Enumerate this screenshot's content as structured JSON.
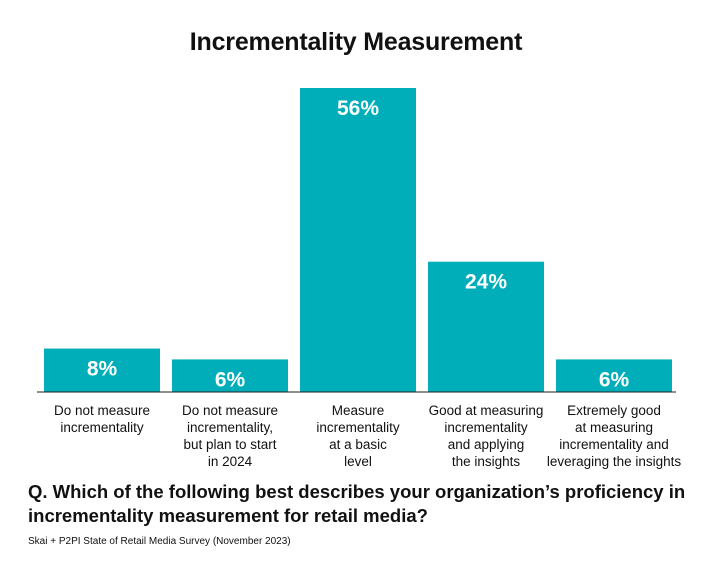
{
  "chart_data": {
    "type": "bar",
    "title": "Incrementality Measurement",
    "categories": [
      [
        "Do not measure",
        "incrementality"
      ],
      [
        "Do not measure",
        "incrementality,",
        "but plan to start",
        "in 2024"
      ],
      [
        "Measure",
        "incrementality",
        "at a basic",
        "level"
      ],
      [
        "Good at measuring",
        "incrementality",
        "and applying",
        "the insights"
      ],
      [
        "Extremely good",
        "at measuring",
        "incrementality and",
        "leveraging the insights"
      ]
    ],
    "values": [
      8,
      6,
      56,
      24,
      6
    ],
    "value_labels": [
      "8%",
      "6%",
      "56%",
      "24%",
      "6%"
    ],
    "unit": "%",
    "ylim": [
      0,
      56
    ],
    "grid": false,
    "legend": "none",
    "bar_color": "#00AEBA",
    "axis_color": "#222222"
  },
  "question": "Q. Which of the following best describes your organization’s proficiency in incrementality measurement for retail media?",
  "source": "Skai + P2PI State of Retail Media Survey (November 2023)"
}
